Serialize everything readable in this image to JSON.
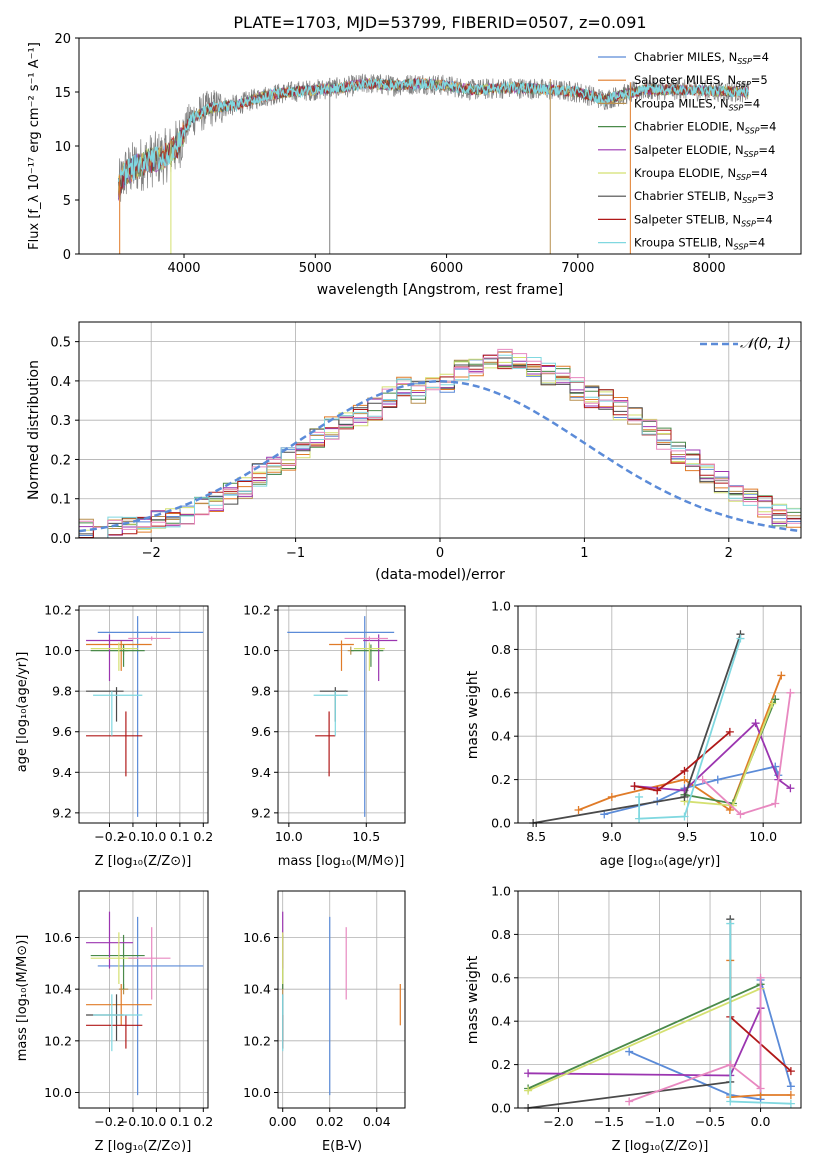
{
  "figure_title": "PLATE=1703, MJD=53799, FIBERID=0507, z=0.091",
  "colors": {
    "chabrier_miles": "#5b8bd8",
    "salpeter_miles": "#e07b28",
    "kroupa_miles": "#b89050",
    "chabrier_elodie": "#4a8a4a",
    "salpeter_elodie": "#9b35b0",
    "kroupa_elodie": "#d4e070",
    "chabrier_stelib": "#4a4a4a",
    "salpeter_stelib": "#b01818",
    "kroupa_stelib": "#80d8e0",
    "gaussian": "#5b8bd8",
    "pink": "#e888c0",
    "data": "#808080"
  },
  "chart_data": [
    {
      "id": "spectrum",
      "type": "line",
      "xlabel": "wavelength [Angstrom, rest frame]",
      "ylabel": "Flux [f_λ 10⁻¹⁷ erg cm⁻² s⁻¹ A⁻¹]",
      "xlim": [
        3200,
        8700
      ],
      "ylim": [
        0,
        20
      ],
      "xticks": [
        4000,
        5000,
        6000,
        7000,
        8000
      ],
      "yticks": [
        0,
        5,
        10,
        15,
        20
      ],
      "continuum": [
        [
          3500,
          6
        ],
        [
          3550,
          7.5
        ],
        [
          3700,
          8.5
        ],
        [
          3850,
          9
        ],
        [
          3950,
          10
        ],
        [
          4050,
          12.5
        ],
        [
          4200,
          13.5
        ],
        [
          4400,
          13.8
        ],
        [
          4600,
          14.6
        ],
        [
          4800,
          15
        ],
        [
          5000,
          15.2
        ],
        [
          5200,
          15.4
        ],
        [
          5400,
          15.8
        ],
        [
          5600,
          15.6
        ],
        [
          5800,
          15.8
        ],
        [
          6000,
          15.6
        ],
        [
          6200,
          15.2
        ],
        [
          6500,
          15.4
        ],
        [
          6800,
          15.2
        ],
        [
          7000,
          15
        ],
        [
          7200,
          14.3
        ],
        [
          7500,
          15.2
        ],
        [
          7800,
          15.2
        ],
        [
          8000,
          15.1
        ],
        [
          8300,
          15
        ]
      ],
      "spikes": [
        [
          3510,
          0
        ],
        [
          3900,
          0
        ],
        [
          5110,
          0
        ],
        [
          6790,
          0
        ],
        [
          7400,
          0
        ]
      ],
      "legend": [
        {
          "label": "Chabrier MILES, N_SSP=4",
          "text": "Chabrier MILES, N",
          "sub": "SSP",
          "tail": "=4",
          "color": "#5b8bd8"
        },
        {
          "label": "Salpeter MILES, N_SSP=5",
          "text": "Salpeter MILES, N",
          "sub": "SSP",
          "tail": "=5",
          "color": "#e07b28"
        },
        {
          "label": "Kroupa MILES, N_SSP=4",
          "text": "Kroupa MILES, N",
          "sub": "SSP",
          "tail": "=4",
          "color": "#b89050"
        },
        {
          "label": "Chabrier ELODIE, N_SSP=4",
          "text": "Chabrier ELODIE, N",
          "sub": "SSP",
          "tail": "=4",
          "color": "#4a8a4a"
        },
        {
          "label": "Salpeter ELODIE, N_SSP=4",
          "text": "Salpeter ELODIE, N",
          "sub": "SSP",
          "tail": "=4",
          "color": "#9b35b0"
        },
        {
          "label": "Kroupa ELODIE, N_SSP=4",
          "text": "Kroupa ELODIE, N",
          "sub": "SSP",
          "tail": "=4",
          "color": "#d4e070"
        },
        {
          "label": "Chabrier STELIB, N_SSP=3",
          "text": "Chabrier STELIB, N",
          "sub": "SSP",
          "tail": "=3",
          "color": "#4a4a4a"
        },
        {
          "label": "Salpeter STELIB, N_SSP=4",
          "text": "Salpeter STELIB, N",
          "sub": "SSP",
          "tail": "=4",
          "color": "#b01818"
        },
        {
          "label": "Kroupa STELIB, N_SSP=4",
          "text": "Kroupa STELIB, N",
          "sub": "SSP",
          "tail": "=4",
          "color": "#80d8e0"
        }
      ]
    },
    {
      "id": "residuals",
      "type": "histogram",
      "xlabel": "(data-model)/error",
      "ylabel": "Normed distribution",
      "xlim": [
        -2.5,
        2.5
      ],
      "ylim": [
        0,
        0.55
      ],
      "xticks": [
        -2,
        -1,
        0,
        1,
        2
      ],
      "yticks": [
        0,
        0.1,
        0.2,
        0.3,
        0.4,
        0.5
      ],
      "legend_label": "𝒩(0, 1)",
      "bin_width": 0.1,
      "base_values": [
        0.02,
        0.02,
        0.03,
        0.03,
        0.04,
        0.05,
        0.05,
        0.06,
        0.08,
        0.09,
        0.11,
        0.13,
        0.16,
        0.18,
        0.2,
        0.23,
        0.26,
        0.28,
        0.3,
        0.31,
        0.33,
        0.36,
        0.38,
        0.37,
        0.38,
        0.4,
        0.43,
        0.44,
        0.45,
        0.46,
        0.44,
        0.43,
        0.42,
        0.41,
        0.38,
        0.36,
        0.35,
        0.33,
        0.31,
        0.28,
        0.25,
        0.22,
        0.2,
        0.17,
        0.14,
        0.12,
        0.1,
        0.08,
        0.06,
        0.05
      ]
    },
    {
      "id": "age_vs_Z",
      "type": "errorbar",
      "xlabel": "Z [log₁₀(Z/Z⊙)]",
      "ylabel": "age  [log₁₀(age/yr)]",
      "xlim": [
        -0.33,
        0.22
      ],
      "ylim": [
        9.15,
        10.22
      ],
      "xticks": [
        -0.2,
        -0.1,
        0.0,
        0.1,
        0.2
      ],
      "xticklabels": [
        "−0.2",
        "−0.1",
        "0.0",
        "0.1",
        "0.2"
      ],
      "yticks": [
        9.2,
        9.4,
        9.6,
        9.8,
        10.0,
        10.2
      ]
    },
    {
      "id": "age_vs_mass",
      "type": "errorbar",
      "xlabel": "mass [log₁₀(M/M⊙)]",
      "ylabel": "",
      "xlim": [
        9.93,
        10.75
      ],
      "ylim": [
        9.15,
        10.22
      ],
      "xticks": [
        10.0,
        10.5
      ],
      "yticks": [
        9.2,
        9.4,
        9.6,
        9.8,
        10.0,
        10.2
      ]
    },
    {
      "id": "mass_weight_vs_age",
      "type": "line",
      "xlabel": "age  [log₁₀(age/yr)]",
      "ylabel": "mass weight",
      "xlim": [
        8.38,
        10.25
      ],
      "ylim": [
        0,
        1
      ],
      "xticks": [
        8.5,
        9.0,
        9.5,
        10.0
      ],
      "yticks": [
        0,
        0.2,
        0.4,
        0.6,
        0.8,
        1.0
      ]
    },
    {
      "id": "mass_vs_Z",
      "type": "errorbar",
      "xlabel": "Z [log₁₀(Z/Z⊙)]",
      "ylabel": "mass [log₁₀(M/M⊙)]",
      "xlim": [
        -0.33,
        0.22
      ],
      "ylim": [
        9.94,
        10.78
      ],
      "xticks": [
        -0.2,
        -0.1,
        0.0,
        0.1,
        0.2
      ],
      "xticklabels": [
        "−0.2",
        "−0.1",
        "0.0",
        "0.1",
        "0.2"
      ],
      "yticks": [
        10.0,
        10.2,
        10.4,
        10.6
      ]
    },
    {
      "id": "mass_vs_EBV",
      "type": "errorbar",
      "xlabel": "E(B-V)",
      "ylabel": "",
      "xlim": [
        -0.002,
        0.052
      ],
      "ylim": [
        9.94,
        10.78
      ],
      "xticks": [
        0.0,
        0.02,
        0.04
      ],
      "xticklabels": [
        "0.00",
        "0.02",
        "0.04"
      ],
      "yticks": [
        10.0,
        10.2,
        10.4,
        10.6
      ]
    },
    {
      "id": "mass_weight_vs_Z",
      "type": "line",
      "xlabel": "Z [log₁₀(Z/Z⊙)]",
      "ylabel": "mass weight",
      "xlim": [
        -2.4,
        0.4
      ],
      "ylim": [
        0,
        1
      ],
      "xticks": [
        -2.0,
        -1.5,
        -1.0,
        -0.5,
        0.0
      ],
      "xticklabels": [
        "−2.0",
        "−1.5",
        "−1.0",
        "−0.5",
        "0.0"
      ],
      "yticks": [
        0,
        0.2,
        0.4,
        0.6,
        0.8,
        1.0
      ]
    }
  ],
  "fits": [
    {
      "name": "Chabrier MILES",
      "color": "#5b8bd8",
      "Z": -0.08,
      "Zlo": -0.25,
      "Zhi": 0.2,
      "age": 10.09,
      "agelo": 9.18,
      "agehi": 10.17,
      "mass": 10.49,
      "masslo": 9.99,
      "masshi": 10.68,
      "mhi_age": 10.09,
      "ebv": 0.02,
      "age_pts": [
        [
          8.95,
          0.04
        ],
        [
          9.3,
          0.1
        ],
        [
          9.48,
          0.16
        ],
        [
          9.7,
          0.2
        ],
        [
          10.08,
          0.26
        ],
        [
          10.1,
          0.22
        ]
      ],
      "z_pts": [
        [
          -1.3,
          0.26
        ],
        [
          -0.3,
          0.06
        ],
        [
          0.0,
          0.04
        ],
        [
          0.0,
          0.59
        ],
        [
          0.3,
          0.1
        ]
      ]
    },
    {
      "name": "Salpeter MILES",
      "color": "#e07b28",
      "Z": -0.15,
      "Zlo": -0.3,
      "Zhi": -0.02,
      "age": 10.03,
      "agelo": 9.9,
      "agehi": 10.05,
      "mass": 10.34,
      "masslo": 10.26,
      "masshi": 10.42,
      "mhi_age": 10.03,
      "ebv": 0.05,
      "age_pts": [
        [
          8.78,
          0.06
        ],
        [
          9.0,
          0.12
        ],
        [
          9.48,
          0.2
        ],
        [
          9.78,
          0.06
        ],
        [
          10.12,
          0.68
        ]
      ],
      "z_pts": [
        [
          -0.3,
          0.68
        ],
        [
          -0.3,
          0.05
        ],
        [
          0.0,
          0.06
        ],
        [
          0.3,
          0.06
        ]
      ]
    },
    {
      "name": "Kroupa MILES",
      "color": "#b89050",
      "Z": -0.14,
      "Zlo": -0.16,
      "Zhi": -0.12,
      "age": 10.0,
      "agelo": 9.98,
      "agehi": 10.02,
      "mass": 10.4,
      "masslo": 10.38,
      "masshi": 10.42,
      "mhi_age": 10.0,
      "ebv": 0.0,
      "age_pts": [],
      "z_pts": []
    },
    {
      "name": "Chabrier ELODIE",
      "color": "#4a8a4a",
      "Z": -0.14,
      "Zlo": -0.28,
      "Zhi": -0.05,
      "age": 10.0,
      "agelo": 9.92,
      "agehi": 10.03,
      "mass": 10.53,
      "masslo": 10.4,
      "masshi": 10.61,
      "mhi_age": 10.0,
      "ebv": 0.0,
      "age_pts": [
        [
          9.48,
          0.13
        ],
        [
          9.8,
          0.09
        ],
        [
          10.08,
          0.57
        ]
      ],
      "z_pts": [
        [
          -2.3,
          0.09
        ],
        [
          0.0,
          0.57
        ]
      ]
    },
    {
      "name": "Salpeter ELODIE",
      "color": "#9b35b0",
      "Z": -0.2,
      "Zlo": -0.3,
      "Zhi": -0.1,
      "age": 10.05,
      "agelo": 9.85,
      "agehi": 10.08,
      "mass": 10.58,
      "masslo": 10.48,
      "masshi": 10.7,
      "mhi_age": 10.05,
      "ebv": 0.0,
      "age_pts": [
        [
          9.15,
          0.17
        ],
        [
          9.48,
          0.15
        ],
        [
          9.95,
          0.46
        ],
        [
          10.1,
          0.2
        ],
        [
          10.18,
          0.16
        ]
      ],
      "z_pts": [
        [
          -2.3,
          0.16
        ],
        [
          -0.3,
          0.15
        ],
        [
          0.0,
          0.46
        ]
      ]
    },
    {
      "name": "Kroupa ELODIE",
      "color": "#d4e070",
      "Z": -0.16,
      "Zlo": -0.28,
      "Zhi": -0.08,
      "age": 10.01,
      "agelo": 9.9,
      "agehi": 10.04,
      "mass": 10.52,
      "masslo": 10.42,
      "masshi": 10.62,
      "mhi_age": 10.01,
      "ebv": 0.0,
      "age_pts": [
        [
          9.48,
          0.1
        ],
        [
          9.8,
          0.08
        ],
        [
          10.06,
          0.55
        ]
      ],
      "z_pts": [
        [
          -2.3,
          0.08
        ],
        [
          0.0,
          0.55
        ]
      ]
    },
    {
      "name": "Chabrier STELIB",
      "color": "#4a4a4a",
      "Z": -0.17,
      "Zlo": -0.3,
      "Zhi": -0.14,
      "age": 9.8,
      "agelo": 9.65,
      "agehi": 9.82,
      "mass": 10.3,
      "masslo": 10.2,
      "masshi": 10.38,
      "mhi_age": 9.8,
      "ebv": 0.0,
      "age_pts": [
        [
          8.48,
          0.0
        ],
        [
          9.48,
          0.12
        ],
        [
          9.85,
          0.87
        ]
      ],
      "z_pts": [
        [
          -2.3,
          0.0
        ],
        [
          -0.3,
          0.12
        ],
        [
          -0.3,
          0.87
        ]
      ]
    },
    {
      "name": "Salpeter STELIB",
      "color": "#b01818",
      "Z": -0.13,
      "Zlo": -0.3,
      "Zhi": -0.06,
      "age": 9.58,
      "agelo": 9.38,
      "agehi": 9.7,
      "mass": 10.26,
      "masslo": 10.17,
      "masshi": 10.3,
      "mhi_age": 9.58,
      "ebv": 0.0,
      "age_pts": [
        [
          9.15,
          0.17
        ],
        [
          9.3,
          0.15
        ],
        [
          9.48,
          0.24
        ],
        [
          9.78,
          0.42
        ]
      ],
      "z_pts": [
        [
          -0.3,
          0.42
        ],
        [
          0.3,
          0.17
        ]
      ]
    },
    {
      "name": "Kroupa STELIB",
      "color": "#80d8e0",
      "Z": -0.19,
      "Zlo": -0.27,
      "Zhi": -0.06,
      "age": 9.78,
      "agelo": 9.58,
      "agehi": 9.8,
      "mass": 10.3,
      "masslo": 10.16,
      "masshi": 10.38,
      "mhi_age": 9.78,
      "ebv": 0.0,
      "age_pts": [
        [
          9.18,
          0.12
        ],
        [
          9.18,
          0.02
        ],
        [
          9.48,
          0.03
        ],
        [
          9.85,
          0.85
        ]
      ],
      "z_pts": [
        [
          -0.3,
          0.85
        ],
        [
          -0.3,
          0.03
        ],
        [
          0.3,
          0.02
        ]
      ]
    },
    {
      "name": "pink",
      "color": "#e888c0",
      "Z": -0.02,
      "Zlo": -0.12,
      "Zhi": 0.06,
      "age": 10.06,
      "agelo": 10.05,
      "agehi": 10.07,
      "mass": 10.52,
      "masslo": 10.36,
      "masshi": 10.64,
      "mhi_age": 10.06,
      "ebv": 0.027,
      "age_pts": [
        [
          9.6,
          0.2
        ],
        [
          9.85,
          0.04
        ],
        [
          10.08,
          0.09
        ],
        [
          10.18,
          0.6
        ]
      ],
      "z_pts": [
        [
          -1.3,
          0.03
        ],
        [
          -0.3,
          0.2
        ],
        [
          0.0,
          0.09
        ],
        [
          0.0,
          0.6
        ]
      ]
    }
  ]
}
